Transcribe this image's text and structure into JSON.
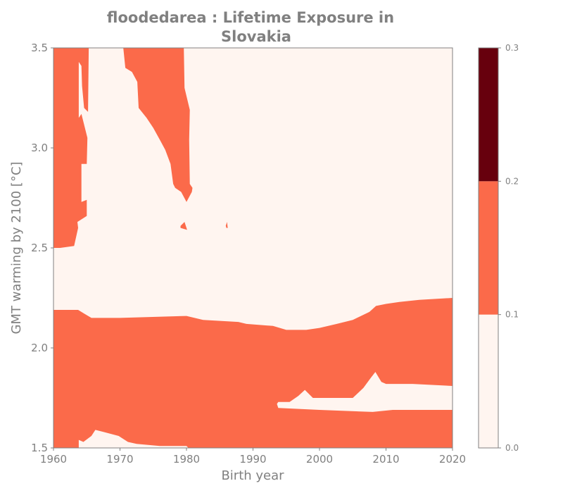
{
  "chart_data": {
    "type": "heatmap",
    "title_lines": [
      "floodedarea : Lifetime Exposure in",
      "Slovakia"
    ],
    "xlabel": "Birth year",
    "ylabel": "GMT warming by 2100 [°C]",
    "xlim": [
      1960,
      2020
    ],
    "ylim": [
      1.5,
      3.5
    ],
    "x_ticks": [
      "1960",
      "1970",
      "1980",
      "1990",
      "2000",
      "2010",
      "2020"
    ],
    "y_ticks": [
      "1.5",
      "2.0",
      "2.5",
      "3.0",
      "3.5"
    ],
    "colorbar": {
      "levels": [
        0.0,
        0.1,
        0.2,
        0.3
      ],
      "tick_labels": [
        "0.0",
        "0.1",
        "0.2",
        "0.3"
      ],
      "colors": [
        "#fff5f0",
        "#fb6a4a",
        "#67000d"
      ]
    },
    "background_level_color": "#fff5f0",
    "regions": [
      {
        "level": "0.1-0.2",
        "color": "#fb6a4a",
        "outline": [
          [
            1960,
            3.5
          ],
          [
            1965.3,
            3.5
          ],
          [
            1965.2,
            3.18
          ],
          [
            1964.6,
            3.2
          ],
          [
            1964.3,
            3.31
          ],
          [
            1964.2,
            3.41
          ],
          [
            1963.8,
            3.43
          ],
          [
            1963.8,
            3.15
          ],
          [
            1964.2,
            3.17
          ],
          [
            1965.1,
            3.05
          ],
          [
            1965,
            2.92
          ],
          [
            1964.2,
            2.92
          ],
          [
            1964.2,
            2.73
          ],
          [
            1965,
            2.74
          ],
          [
            1965,
            2.66
          ],
          [
            1963.6,
            2.63
          ],
          [
            1963.7,
            2.6
          ],
          [
            1963.1,
            2.51
          ],
          [
            1961,
            2.5
          ],
          [
            1960,
            2.5
          ]
        ]
      },
      {
        "level": "0.1-0.2",
        "color": "#fb6a4a",
        "outline": [
          [
            1970.5,
            3.5
          ],
          [
            1979.6,
            3.5
          ],
          [
            1979.7,
            3.3
          ],
          [
            1980.5,
            3.19
          ],
          [
            1980.4,
            3.04
          ],
          [
            1980.5,
            2.82
          ],
          [
            1980.9,
            2.8
          ],
          [
            1980.8,
            2.78
          ],
          [
            1980,
            2.73
          ],
          [
            1979.2,
            2.78
          ],
          [
            1978.3,
            2.8
          ],
          [
            1978,
            2.82
          ],
          [
            1977.6,
            2.92
          ],
          [
            1976.8,
            2.99
          ],
          [
            1976,
            3.04
          ],
          [
            1975,
            3.1
          ],
          [
            1974,
            3.15
          ],
          [
            1972.8,
            3.2
          ],
          [
            1972.6,
            3.33
          ],
          [
            1971.8,
            3.38
          ],
          [
            1970.8,
            3.4
          ]
        ]
      },
      {
        "level": "0.1-0.2",
        "color": "#fb6a4a",
        "outline": [
          [
            1979.1,
            2.61
          ],
          [
            1979.7,
            2.63
          ],
          [
            1980.1,
            2.59
          ],
          [
            1979.1,
            2.6
          ]
        ]
      },
      {
        "level": "0.1-0.2",
        "color": "#fb6a4a",
        "outline": [
          [
            1985.9,
            2.61
          ],
          [
            1986.1,
            2.63
          ],
          [
            1986.2,
            2.6
          ],
          [
            1986,
            2.6
          ]
        ]
      },
      {
        "level": "0.1-0.2",
        "color": "#fb6a4a",
        "outline": [
          [
            1960,
            2.19
          ],
          [
            1963.7,
            2.19
          ],
          [
            1964.7,
            2.17
          ],
          [
            1965.7,
            2.15
          ],
          [
            1970,
            2.15
          ],
          [
            1980,
            2.16
          ],
          [
            1982.5,
            2.14
          ],
          [
            1987.8,
            2.13
          ],
          [
            1989,
            2.12
          ],
          [
            1993,
            2.11
          ],
          [
            1995,
            2.09
          ],
          [
            1998,
            2.09
          ],
          [
            2000,
            2.1
          ],
          [
            2002.6,
            2.12
          ],
          [
            2005,
            2.14
          ],
          [
            2007.5,
            2.18
          ],
          [
            2008.5,
            2.21
          ],
          [
            2010,
            2.22
          ],
          [
            2012,
            2.23
          ],
          [
            2015,
            2.24
          ],
          [
            2020,
            2.25
          ],
          [
            2020,
            1.81
          ],
          [
            2014,
            1.82
          ],
          [
            2010,
            1.82
          ],
          [
            2009.3,
            1.83
          ],
          [
            2008.4,
            1.88
          ],
          [
            2007.7,
            1.85
          ],
          [
            2006.6,
            1.8
          ],
          [
            2005,
            1.75
          ],
          [
            2003,
            1.75
          ],
          [
            1999,
            1.75
          ],
          [
            1997.8,
            1.79
          ],
          [
            1996.8,
            1.76
          ],
          [
            1995.5,
            1.73
          ],
          [
            1993.8,
            1.73
          ],
          [
            1993.6,
            1.72
          ],
          [
            1993.8,
            1.7
          ],
          [
            2000,
            1.69
          ],
          [
            2008,
            1.68
          ],
          [
            2011,
            1.69
          ],
          [
            2020,
            1.69
          ],
          [
            2020,
            1.5
          ],
          [
            1980.3,
            1.5
          ],
          [
            1980,
            1.51
          ],
          [
            1976,
            1.51
          ],
          [
            1972.5,
            1.52
          ],
          [
            1971.2,
            1.53
          ],
          [
            1969.8,
            1.56
          ],
          [
            1967.5,
            1.58
          ],
          [
            1966.3,
            1.59
          ],
          [
            1965.7,
            1.56
          ],
          [
            1964.5,
            1.53
          ],
          [
            1963.8,
            1.54
          ],
          [
            1963.8,
            1.5
          ],
          [
            1960,
            1.5
          ]
        ]
      }
    ]
  }
}
